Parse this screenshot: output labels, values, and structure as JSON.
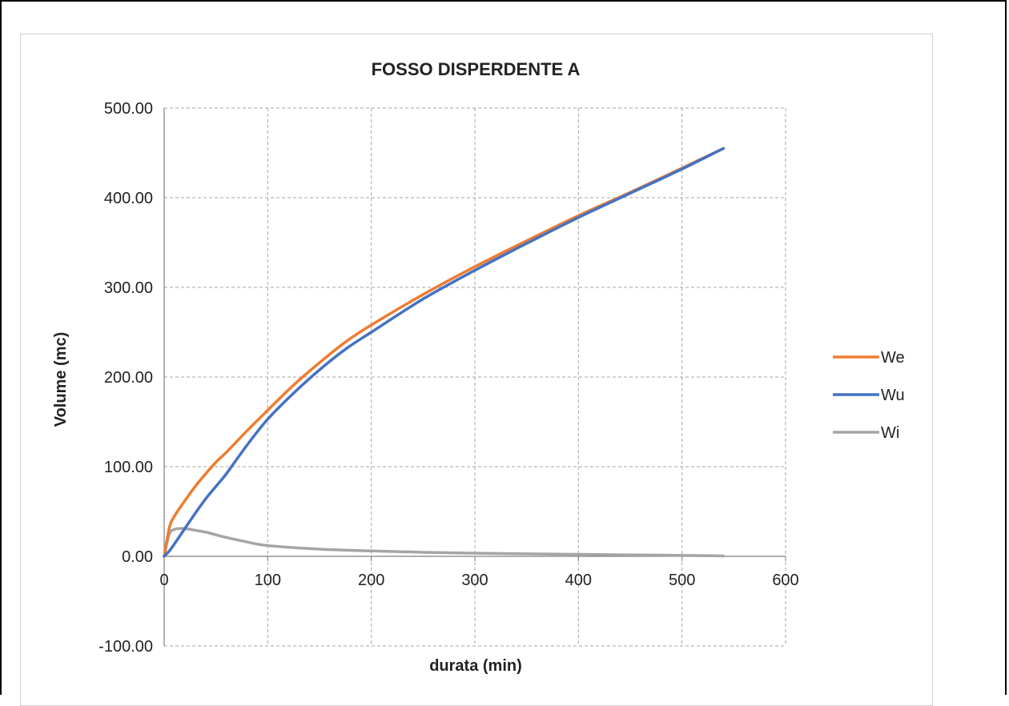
{
  "chart_data": {
    "type": "line",
    "title": "FOSSO DISPERDENTE A",
    "xlabel": "durata (min)",
    "ylabel": "Volume (mc)",
    "xlim": [
      0,
      600
    ],
    "ylim": [
      -100,
      500
    ],
    "x_ticks": [
      0,
      100,
      200,
      300,
      400,
      500,
      600
    ],
    "y_ticks": [
      -100,
      0,
      100,
      200,
      300,
      400,
      500
    ],
    "x_tick_labels": [
      "0",
      "100",
      "200",
      "300",
      "400",
      "500",
      "600"
    ],
    "y_tick_labels": [
      "-100.00",
      "0.00",
      "100.00",
      "200.00",
      "300.00",
      "400.00",
      "500.00"
    ],
    "grid": true,
    "legend_position": "right",
    "series": [
      {
        "name": "We",
        "color": "#ED7D31",
        "x": [
          0,
          5,
          10,
          20,
          30,
          40,
          50,
          60,
          80,
          100,
          125,
          150,
          175,
          200,
          250,
          300,
          350,
          400,
          450,
          500,
          540
        ],
        "y": [
          0,
          32,
          45,
          62,
          78,
          92,
          105,
          116,
          140,
          163,
          191,
          216,
          239,
          258,
          292,
          323,
          352,
          380,
          406,
          433,
          455
        ]
      },
      {
        "name": "Wu",
        "color": "#4472C4",
        "x": [
          0,
          5,
          10,
          20,
          30,
          40,
          50,
          60,
          80,
          100,
          125,
          150,
          175,
          200,
          250,
          300,
          350,
          400,
          450,
          500,
          540
        ],
        "y": [
          0,
          6,
          14,
          31,
          48,
          64,
          78,
          92,
          124,
          153,
          182,
          208,
          231,
          250,
          287,
          319,
          349,
          378,
          405,
          432,
          455
        ]
      },
      {
        "name": "Wi",
        "color": "#A5A5A5",
        "x": [
          0,
          5,
          10,
          15,
          20,
          30,
          40,
          50,
          60,
          80,
          100,
          150,
          200,
          250,
          300,
          350,
          400,
          450,
          500,
          540
        ],
        "y": [
          0,
          25,
          30,
          31,
          31,
          29,
          27,
          24,
          21,
          16,
          12,
          8,
          6,
          4.5,
          3.5,
          2.8,
          2.2,
          1.6,
          1.0,
          0.5
        ]
      }
    ]
  }
}
